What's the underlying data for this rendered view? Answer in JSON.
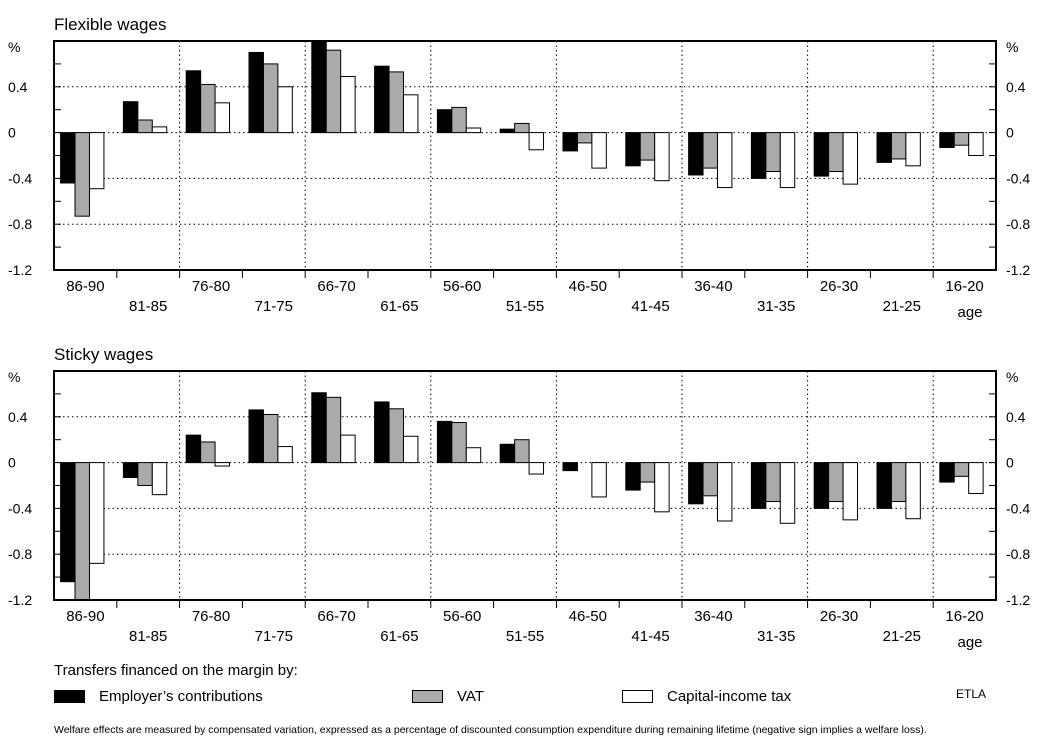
{
  "chart_data": [
    {
      "type": "bar",
      "title": "Flexible wages",
      "ylabel": "%",
      "xlabel": "age",
      "ylim": [
        -1.2,
        0.8
      ],
      "yticks": [
        "0.4",
        "0",
        "-0.4",
        "-0.8",
        "-1.2"
      ],
      "grid": true,
      "categories": [
        "86-90",
        "81-85",
        "76-80",
        "71-75",
        "66-70",
        "61-65",
        "56-60",
        "51-55",
        "46-50",
        "41-45",
        "36-40",
        "31-35",
        "26-30",
        "21-25",
        "16-20"
      ],
      "series": [
        {
          "name": "Employer's contributions",
          "values": [
            -0.44,
            0.27,
            0.54,
            0.7,
            0.8,
            0.58,
            0.2,
            0.03,
            -0.16,
            -0.29,
            -0.37,
            -0.4,
            -0.38,
            -0.26,
            -0.13
          ]
        },
        {
          "name": "VAT",
          "values": [
            -0.73,
            0.11,
            0.42,
            0.6,
            0.72,
            0.53,
            0.22,
            0.08,
            -0.09,
            -0.24,
            -0.31,
            -0.34,
            -0.34,
            -0.23,
            -0.11
          ]
        },
        {
          "name": "Capital-income tax",
          "values": [
            -0.49,
            0.05,
            0.26,
            0.4,
            0.49,
            0.33,
            0.04,
            -0.15,
            -0.31,
            -0.42,
            -0.48,
            -0.48,
            -0.45,
            -0.29,
            -0.2
          ]
        }
      ]
    },
    {
      "type": "bar",
      "title": "Sticky wages",
      "ylabel": "%",
      "xlabel": "age",
      "ylim": [
        -1.2,
        0.8
      ],
      "yticks": [
        "0.4",
        "0",
        "-0.4",
        "-0.8",
        "-1.2"
      ],
      "grid": true,
      "categories": [
        "86-90",
        "81-85",
        "76-80",
        "71-75",
        "66-70",
        "61-65",
        "56-60",
        "51-55",
        "46-50",
        "41-45",
        "36-40",
        "31-35",
        "26-30",
        "21-25",
        "16-20"
      ],
      "series": [
        {
          "name": "Employer's contributions",
          "values": [
            -1.04,
            -0.13,
            0.24,
            0.46,
            0.61,
            0.53,
            0.36,
            0.16,
            -0.07,
            -0.24,
            -0.36,
            -0.4,
            -0.4,
            -0.4,
            -0.17
          ]
        },
        {
          "name": "VAT",
          "values": [
            -1.22,
            -0.2,
            0.18,
            0.42,
            0.57,
            0.47,
            0.35,
            0.2,
            0.0,
            -0.17,
            -0.29,
            -0.34,
            -0.34,
            -0.34,
            -0.12
          ]
        },
        {
          "name": "Capital-income tax",
          "values": [
            -0.88,
            -0.28,
            -0.03,
            0.14,
            0.24,
            0.23,
            0.13,
            -0.1,
            -0.3,
            -0.43,
            -0.51,
            -0.53,
            -0.5,
            -0.49,
            -0.27
          ]
        }
      ]
    }
  ],
  "legend": {
    "title": "Transfers financed on the margin by:",
    "items": [
      {
        "label": "Employer’s contributions",
        "color": "#000000"
      },
      {
        "label": "VAT",
        "color": "#aaaaaa"
      },
      {
        "label": "Capital-income tax",
        "color": "#ffffff"
      }
    ]
  },
  "source": "ETLA",
  "footnote": "Welfare effects are measured by compensated variation, expressed as a percentage of discounted consumption expenditure during remaining lifetime (negative sign implies a welfare loss)."
}
